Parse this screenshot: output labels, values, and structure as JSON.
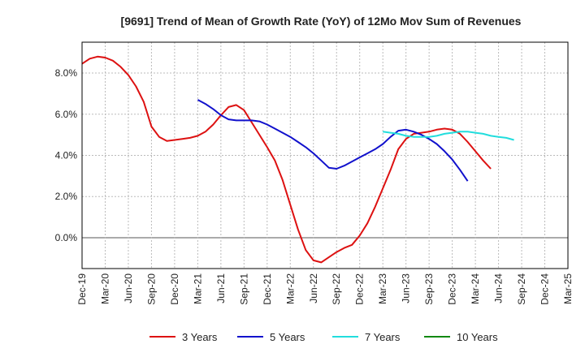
{
  "chart_data": {
    "type": "line",
    "title": "[9691]  Trend of Mean of Growth Rate (YoY) of 12Mo Mov Sum of Revenues",
    "xlabel": "",
    "ylabel": "",
    "ylim": [
      -1.5,
      9.5
    ],
    "yticks": [
      0.0,
      2.0,
      4.0,
      6.0,
      8.0
    ],
    "ytick_labels": [
      "0.0%",
      "2.0%",
      "4.0%",
      "6.0%",
      "8.0%"
    ],
    "grid": true,
    "x_tick_labels": [
      "Dec-19",
      "Mar-20",
      "Jun-20",
      "Sep-20",
      "Dec-20",
      "Mar-21",
      "Jun-21",
      "Sep-21",
      "Dec-21",
      "Mar-22",
      "Jun-22",
      "Sep-22",
      "Dec-22",
      "Mar-23",
      "Jun-23",
      "Sep-23",
      "Dec-23",
      "Mar-24",
      "Jun-24",
      "Sep-24",
      "Dec-24",
      "Mar-25"
    ],
    "legend_position": "bottom",
    "series": [
      {
        "name": "3 Years",
        "color": "#dd1111",
        "start_index": 0,
        "values": [
          8.45,
          8.7,
          8.8,
          8.75,
          8.6,
          8.3,
          7.9,
          7.35,
          6.6,
          5.4,
          4.9,
          4.7,
          4.75,
          4.8,
          4.85,
          4.95,
          5.15,
          5.5,
          5.95,
          6.35,
          6.45,
          6.2,
          5.6,
          5.0,
          4.4,
          3.75,
          2.8,
          1.6,
          0.4,
          -0.6,
          -1.1,
          -1.2,
          -0.95,
          -0.7,
          -0.5,
          -0.35,
          0.1,
          0.7,
          1.5,
          2.4,
          3.3,
          4.3,
          4.8,
          5.05,
          5.1,
          5.15,
          5.25,
          5.3,
          5.25,
          5.05,
          4.65,
          4.2,
          3.75,
          3.35
        ]
      },
      {
        "name": "5 Years",
        "color": "#1111cc",
        "start_index": 15,
        "values": [
          6.7,
          6.5,
          6.25,
          5.95,
          5.75,
          5.7,
          5.7,
          5.7,
          5.65,
          5.5,
          5.3,
          5.1,
          4.9,
          4.65,
          4.4,
          4.1,
          3.75,
          3.4,
          3.35,
          3.5,
          3.7,
          3.9,
          4.1,
          4.3,
          4.55,
          4.9,
          5.2,
          5.25,
          5.15,
          5.0,
          4.8,
          4.55,
          4.2,
          3.8,
          3.3,
          2.75
        ]
      },
      {
        "name": "7 Years",
        "color": "#22dddd",
        "start_index": 39,
        "values": [
          5.15,
          5.1,
          5.05,
          4.95,
          4.9,
          4.9,
          4.9,
          4.95,
          5.05,
          5.1,
          5.15,
          5.15,
          5.1,
          5.05,
          4.95,
          4.9,
          4.85,
          4.75
        ]
      },
      {
        "name": "10 Years",
        "color": "#118811",
        "start_index": 0,
        "values": []
      }
    ]
  }
}
